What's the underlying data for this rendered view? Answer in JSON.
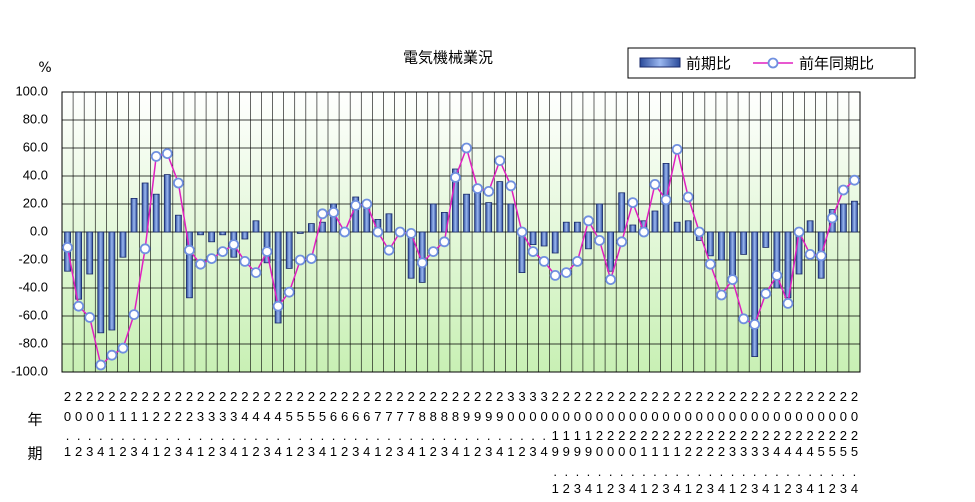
{
  "chart_data": {
    "type": "bar_line",
    "title": "電気機械業況",
    "y_unit": "%",
    "row_labels": [
      "年",
      "期"
    ],
    "legend": "top-right",
    "categories": [
      "20.1",
      "20.2",
      "20.3",
      "20.4",
      "21.1",
      "21.2",
      "21.3",
      "21.4",
      "22.1",
      "22.2",
      "22.3",
      "22.4",
      "23.1",
      "23.2",
      "23.3",
      "23.4",
      "24.1",
      "24.2",
      "24.3",
      "24.4",
      "25.1",
      "25.2",
      "25.3",
      "25.4",
      "26.1",
      "26.2",
      "26.3",
      "26.4",
      "27.1",
      "27.2",
      "27.3",
      "27.4",
      "28.1",
      "28.2",
      "28.3",
      "28.4",
      "29.1",
      "29.2",
      "29.3",
      "29.4",
      "30.1",
      "30.2",
      "30.3",
      "30.4",
      "2019.1",
      "2019.2",
      "2019.3",
      "2019.4",
      "2020.1",
      "2020.2",
      "2020.3",
      "2020.4",
      "2021.1",
      "2021.2",
      "2021.3",
      "2021.4",
      "2022.1",
      "2022.2",
      "2022.3",
      "2022.4",
      "2023.1",
      "2023.2",
      "2023.3",
      "2023.4",
      "2024.1",
      "2024.2",
      "2024.3",
      "2024.4",
      "2025.1",
      "2025.2",
      "2025.3",
      "2025.4"
    ],
    "series": [
      {
        "name": "前期比",
        "kind": "bar",
        "color": "#3355aa",
        "values": [
          -28,
          -48,
          -30,
          -72,
          -70,
          -18,
          24,
          35,
          27,
          41,
          12,
          -47,
          -2,
          -7,
          -2,
          -18,
          -5,
          8,
          -22,
          -65,
          -26,
          -1,
          6,
          7,
          20,
          0,
          25,
          17,
          9,
          13,
          -2,
          -33,
          -36,
          20,
          14,
          45,
          27,
          33,
          21,
          36,
          20,
          -29,
          -9,
          -10,
          -15,
          7,
          7,
          -12,
          20,
          -28,
          28,
          5,
          8,
          15,
          49,
          7,
          8,
          -6,
          -17,
          -20,
          -37,
          -16,
          -89,
          -11,
          -40,
          -47,
          -30,
          8,
          -33,
          16,
          20,
          22
        ]
      },
      {
        "name": "前年同期比",
        "kind": "line",
        "color": "#e020c0",
        "values": [
          -11,
          -53,
          -61,
          -95,
          -88,
          -83,
          -59,
          -12,
          54,
          56,
          35,
          -13,
          -23,
          -19,
          -14,
          -9,
          -21,
          -29,
          -14,
          -53,
          -43,
          -20,
          -19,
          13,
          14,
          0,
          19,
          20,
          0,
          -13,
          0,
          -1,
          -22,
          -14,
          -7,
          39,
          60,
          31,
          29,
          51,
          33,
          0,
          -14,
          -21,
          -31,
          -29,
          -21,
          8,
          -6,
          -34,
          -7,
          21,
          0,
          34,
          23,
          59,
          25,
          0,
          -23,
          -45,
          -34,
          -62,
          -66,
          -44,
          -31,
          -51,
          0,
          -16,
          -17,
          10,
          30,
          37
        ]
      }
    ],
    "ylim": [
      -100,
      100
    ],
    "yticks": [
      {
        "value": -100,
        "label": "-100.0"
      },
      {
        "value": -80,
        "label": "-80.0"
      },
      {
        "value": -60,
        "label": "-60.0"
      },
      {
        "value": -40,
        "label": "-40.0"
      },
      {
        "value": -20,
        "label": "-20.0"
      },
      {
        "value": 0,
        "label": "0.0"
      },
      {
        "value": 20,
        "label": "20.0"
      },
      {
        "value": 40,
        "label": "40.0"
      },
      {
        "value": 60,
        "label": "60.0"
      },
      {
        "value": 80,
        "label": "80.0"
      },
      {
        "value": 100,
        "label": "100.0"
      }
    ],
    "grid": true
  }
}
